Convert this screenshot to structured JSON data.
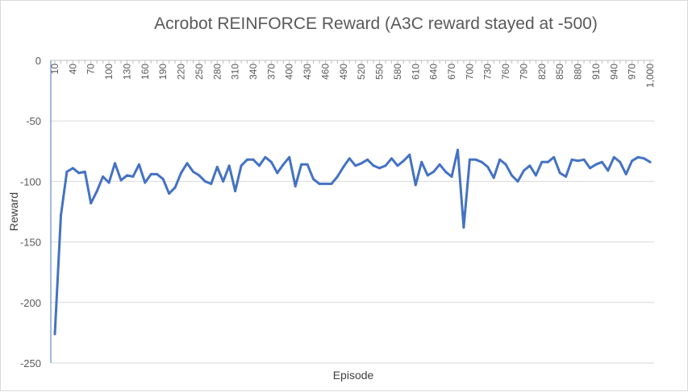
{
  "chart_data": {
    "type": "line",
    "title": "Acrobot REINFORCE Reward (A3C reward stayed at -500)",
    "xlabel": "Episode",
    "ylabel": "Reward",
    "ylim": [
      -250,
      0
    ],
    "yticks": [
      0,
      -50,
      -100,
      -150,
      -200,
      -250
    ],
    "xtick_labels": [
      "10",
      "40",
      "70",
      "100",
      "130",
      "160",
      "190",
      "220",
      "250",
      "280",
      "310",
      "340",
      "370",
      "400",
      "430",
      "460",
      "490",
      "520",
      "550",
      "580",
      "610",
      "640",
      "670",
      "700",
      "730",
      "760",
      "790",
      "820",
      "850",
      "880",
      "910",
      "940",
      "970",
      "1,000"
    ],
    "grid": true,
    "legend": "none",
    "series_color": "#4472c4",
    "x": [
      10,
      20,
      30,
      40,
      50,
      60,
      70,
      80,
      90,
      100,
      110,
      120,
      130,
      140,
      150,
      160,
      170,
      180,
      190,
      200,
      210,
      220,
      230,
      240,
      250,
      260,
      270,
      280,
      290,
      300,
      310,
      320,
      330,
      340,
      350,
      360,
      370,
      380,
      390,
      400,
      410,
      420,
      430,
      440,
      450,
      460,
      470,
      480,
      490,
      500,
      510,
      520,
      530,
      540,
      550,
      560,
      570,
      580,
      590,
      600,
      610,
      620,
      630,
      640,
      650,
      660,
      670,
      680,
      690,
      700,
      710,
      720,
      730,
      740,
      750,
      760,
      770,
      780,
      790,
      800,
      810,
      820,
      830,
      840,
      850,
      860,
      870,
      880,
      890,
      900,
      910,
      920,
      930,
      940,
      950,
      960,
      970,
      980,
      990,
      1000
    ],
    "values": [
      -226,
      -128,
      -92,
      -89,
      -93,
      -92,
      -118,
      -108,
      -96,
      -101,
      -85,
      -99,
      -95,
      -96,
      -86,
      -101,
      -94,
      -94,
      -98,
      -110,
      -105,
      -93,
      -85,
      -92,
      -95,
      -100,
      -102,
      -88,
      -100,
      -87,
      -108,
      -87,
      -82,
      -82,
      -87,
      -80,
      -84,
      -93,
      -86,
      -80,
      -104,
      -86,
      -86,
      -98,
      -102,
      -102,
      -102,
      -96,
      -88,
      -81,
      -87,
      -85,
      -82,
      -87,
      -89,
      -87,
      -81,
      -87,
      -83,
      -78,
      -103,
      -84,
      -95,
      -92,
      -86,
      -92,
      -96,
      -74,
      -138,
      -82,
      -82,
      -84,
      -88,
      -97,
      -82,
      -86,
      -95,
      -100,
      -91,
      -87,
      -95,
      -84,
      -84,
      -80,
      -93,
      -96,
      -82,
      -83,
      -82,
      -89,
      -86,
      -84,
      -91,
      -80,
      -84,
      -94,
      -83,
      -80,
      -81,
      -84
    ]
  }
}
